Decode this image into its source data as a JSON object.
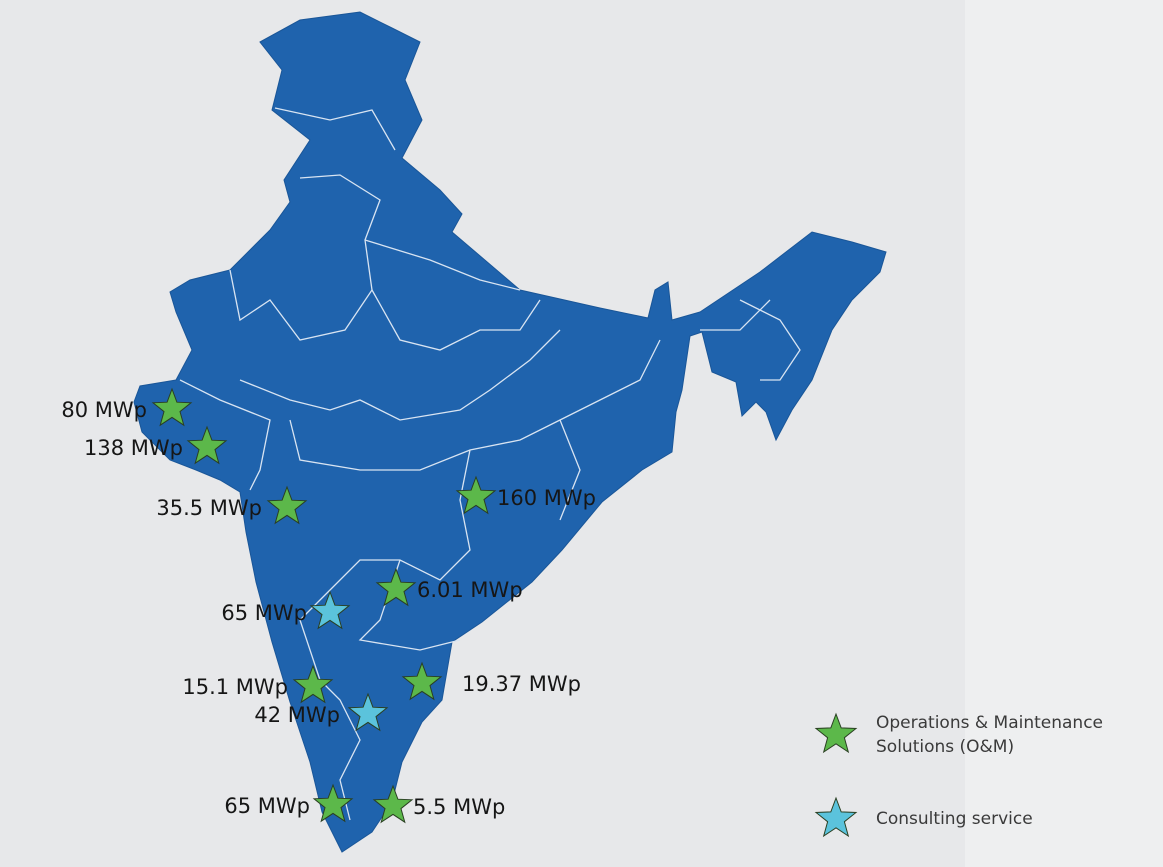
{
  "markers": [
    {
      "label": "80 MWp",
      "color": "#5cb84a"
    },
    {
      "label": "138 MWp",
      "color": "#5cb84a"
    },
    {
      "label": "35.5 MWp",
      "color": "#5cb84a"
    },
    {
      "label": "160 MWp",
      "color": "#5cb84a"
    },
    {
      "label": "6.01 MWp",
      "color": "#5cb84a"
    },
    {
      "label": "65 MWp",
      "color": "#5bc3dc"
    },
    {
      "label": "15.1 MWp",
      "color": "#5cb84a"
    },
    {
      "label": "19.37 MWp",
      "color": "#5cb84a"
    },
    {
      "label": "42 MWp",
      "color": "#5bc3dc"
    },
    {
      "label": "65 MWp",
      "color": "#5cb84a"
    },
    {
      "label": "5.5 MWp",
      "color": "#5cb84a"
    }
  ],
  "legend": [
    {
      "label": "Operations & Maintenance Solutions (O&M)",
      "color": "#5cb84a"
    },
    {
      "label": "Consulting service",
      "color": "#5bc3dc"
    }
  ]
}
